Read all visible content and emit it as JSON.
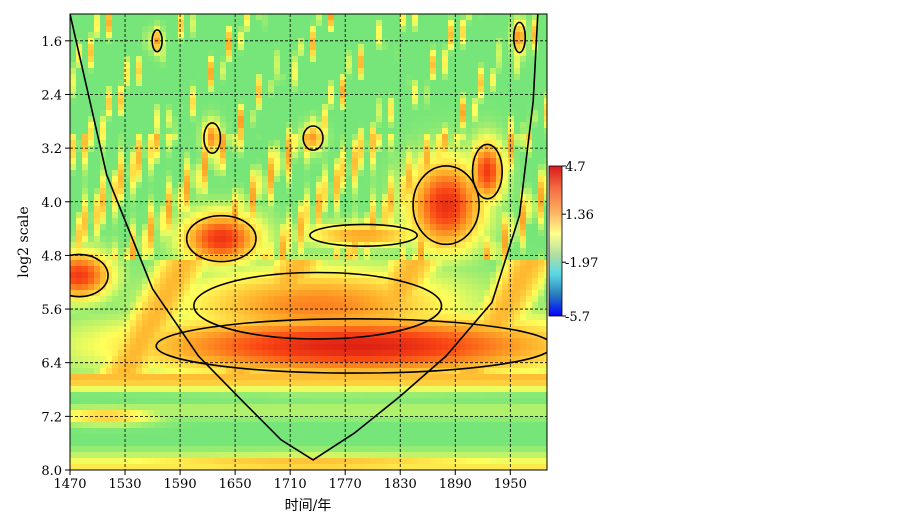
{
  "chart_data": {
    "type": "heatmap",
    "title": "",
    "xlabel": "时间/年",
    "ylabel": "log2 scale",
    "xlim": [
      1470,
      1990
    ],
    "ylim": [
      1.2,
      8.0
    ],
    "x_ticks": [
      1470,
      1530,
      1590,
      1650,
      1710,
      1770,
      1830,
      1890,
      1950
    ],
    "x_tick_labels": [
      "1470",
      "1530",
      "1590",
      "1650",
      "1710",
      "1770",
      "1830",
      "1890",
      "1950"
    ],
    "y_ticks": [
      1.6,
      2.4,
      3.2,
      4.0,
      4.8,
      5.6,
      6.4,
      7.2,
      8.0
    ],
    "y_tick_labels": [
      "1.6",
      "2.4",
      "3.2",
      "4.0",
      "4.8",
      "5.6",
      "6.4",
      "7.2",
      "8.0"
    ],
    "y_reversed": true,
    "gridlines": "dashed",
    "colormap": "jet",
    "colorbar": {
      "min": -5.7,
      "max": 4.7,
      "ticks": [
        4.7,
        1.36,
        -1.97,
        -5.7
      ],
      "tick_labels": [
        "4.7",
        "1.36",
        "-1.97",
        "-5.7"
      ]
    },
    "cone_of_influence": {
      "x": [
        1470,
        1510,
        1560,
        1610,
        1660,
        1700,
        1735,
        1780,
        1830,
        1880,
        1930,
        1960,
        1975,
        1980
      ],
      "y": [
        1.2,
        3.6,
        5.3,
        6.3,
        7.0,
        7.55,
        7.85,
        7.45,
        6.9,
        6.3,
        5.5,
        4.2,
        2.5,
        1.2
      ]
    },
    "red_regions": [
      {
        "cx": 1635,
        "cy": 4.55,
        "rx": 42,
        "ry": 0.38,
        "level": 4.0
      },
      {
        "cx": 1480,
        "cy": 5.1,
        "rx": 35,
        "ry": 0.35,
        "level": 3.9
      },
      {
        "cx": 1740,
        "cy": 5.55,
        "rx": 150,
        "ry": 0.55,
        "level": 2.9
      },
      {
        "cx": 1780,
        "cy": 6.15,
        "rx": 240,
        "ry": 0.45,
        "level": 4.4
      },
      {
        "cx": 1880,
        "cy": 4.05,
        "rx": 40,
        "ry": 0.65,
        "level": 4.1
      },
      {
        "cx": 1925,
        "cy": 3.55,
        "rx": 18,
        "ry": 0.45,
        "level": 3.9
      },
      {
        "cx": 1790,
        "cy": 4.5,
        "rx": 65,
        "ry": 0.18,
        "level": 2.5
      },
      {
        "cx": 1625,
        "cy": 3.05,
        "rx": 10,
        "ry": 0.25,
        "level": 2.8
      },
      {
        "cx": 1735,
        "cy": 3.05,
        "rx": 12,
        "ry": 0.2,
        "level": 2.6
      },
      {
        "cx": 1960,
        "cy": 1.55,
        "rx": 7,
        "ry": 0.25,
        "level": 3.0
      },
      {
        "cx": 1565,
        "cy": 1.6,
        "rx": 6,
        "ry": 0.18,
        "level": 2.5
      },
      {
        "cx": 1730,
        "cy": 7.9,
        "rx": 250,
        "ry": 0.12,
        "level": 2.2
      },
      {
        "cx": 1510,
        "cy": 7.2,
        "rx": 55,
        "ry": 0.12,
        "level": 2.0
      }
    ]
  }
}
